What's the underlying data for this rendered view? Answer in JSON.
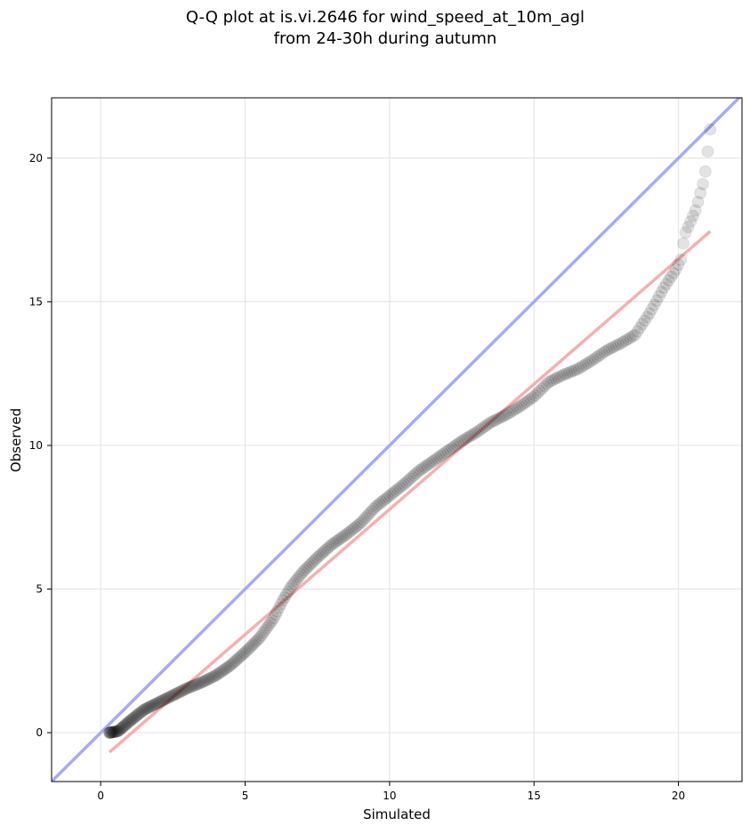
{
  "chart_data": {
    "type": "scatter",
    "title_line1": "Q-Q plot at is.vi.2646 for wind_speed_at_10m_agl",
    "title_line2": "from 24-30h during autumn",
    "xlabel": "Simulated",
    "ylabel": "Observed",
    "xlim": [
      -1.7,
      22.2
    ],
    "ylim": [
      -1.7,
      22.1
    ],
    "xticks": [
      0,
      5,
      10,
      15,
      20
    ],
    "yticks": [
      0,
      5,
      10,
      15,
      20
    ],
    "grid": true,
    "identity_line": {
      "color": "#a6aaf5",
      "from": [
        -1.7,
        -1.7
      ],
      "to": [
        22.2,
        22.2
      ]
    },
    "fit_line": {
      "color": "#f5a6a6",
      "from": [
        0.3,
        -0.68
      ],
      "to": [
        21.1,
        17.45
      ]
    },
    "points_color": "#000000",
    "quantile_knots": [
      [
        0.3,
        0.0
      ],
      [
        0.6,
        0.05
      ],
      [
        1.0,
        0.4
      ],
      [
        1.5,
        0.8
      ],
      [
        2.0,
        1.05
      ],
      [
        2.5,
        1.3
      ],
      [
        3.0,
        1.55
      ],
      [
        3.5,
        1.75
      ],
      [
        4.0,
        2.0
      ],
      [
        4.5,
        2.35
      ],
      [
        5.0,
        2.8
      ],
      [
        5.5,
        3.3
      ],
      [
        6.0,
        4.0
      ],
      [
        6.3,
        4.6
      ],
      [
        6.6,
        5.1
      ],
      [
        7.0,
        5.6
      ],
      [
        7.5,
        6.1
      ],
      [
        8.0,
        6.55
      ],
      [
        8.5,
        6.9
      ],
      [
        9.0,
        7.3
      ],
      [
        9.5,
        7.85
      ],
      [
        10.0,
        8.25
      ],
      [
        10.5,
        8.65
      ],
      [
        11.0,
        9.1
      ],
      [
        11.5,
        9.45
      ],
      [
        12.0,
        9.8
      ],
      [
        12.5,
        10.15
      ],
      [
        13.0,
        10.45
      ],
      [
        13.5,
        10.8
      ],
      [
        14.0,
        11.05
      ],
      [
        14.5,
        11.35
      ],
      [
        15.0,
        11.7
      ],
      [
        15.5,
        12.2
      ],
      [
        16.0,
        12.45
      ],
      [
        16.5,
        12.65
      ],
      [
        17.0,
        12.95
      ],
      [
        17.5,
        13.3
      ],
      [
        18.0,
        13.55
      ],
      [
        18.5,
        13.85
      ],
      [
        19.0,
        14.6
      ],
      [
        19.5,
        15.5
      ],
      [
        19.9,
        16.1
      ],
      [
        20.1,
        16.5
      ],
      [
        20.2,
        17.3
      ],
      [
        20.6,
        18.2
      ],
      [
        20.9,
        19.3
      ],
      [
        21.0,
        20.1
      ],
      [
        21.1,
        21.0
      ]
    ],
    "quantile_points": 330
  }
}
